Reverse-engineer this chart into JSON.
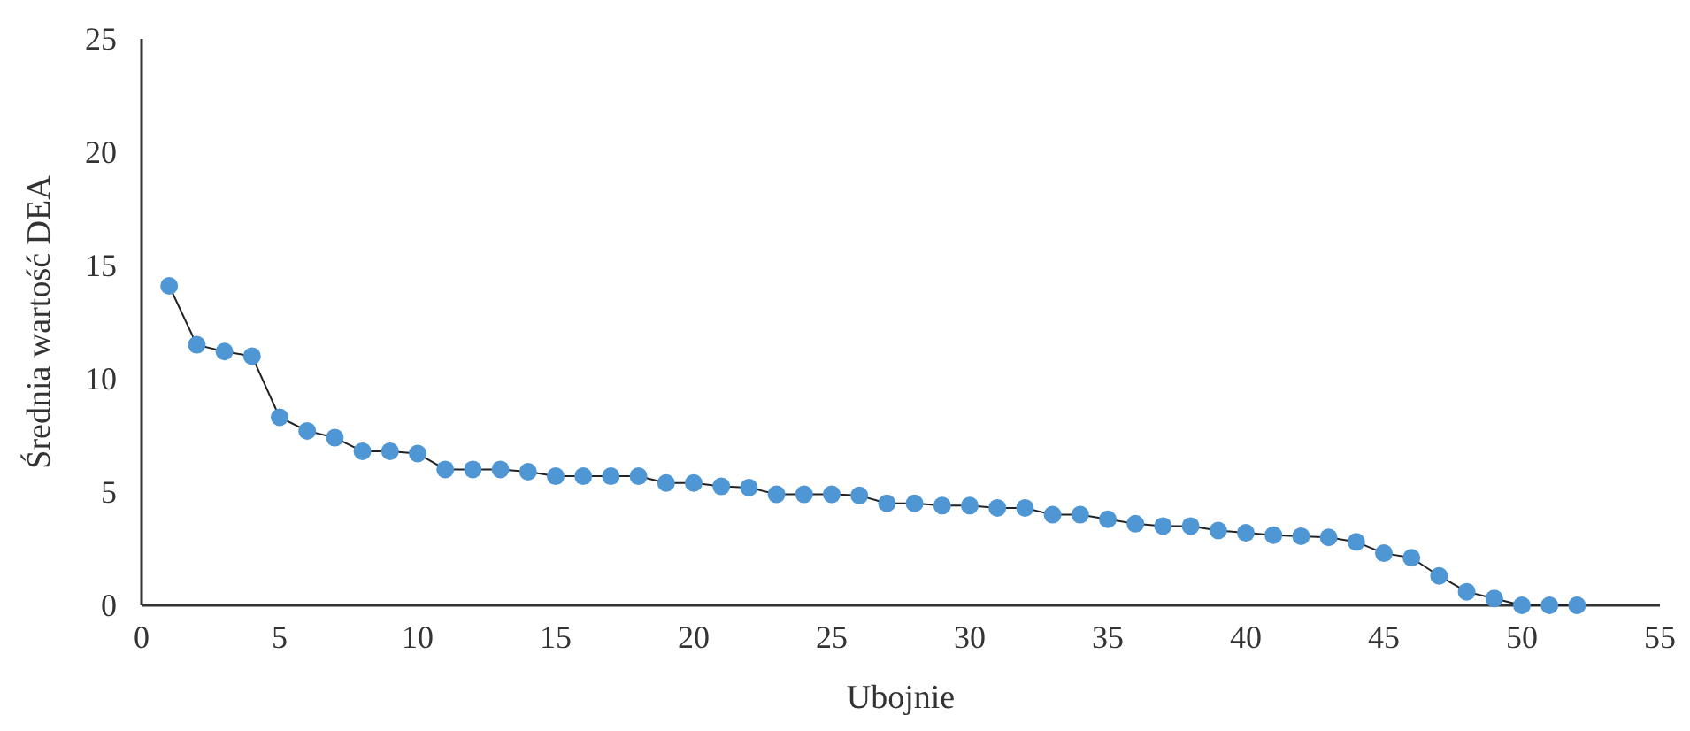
{
  "chart_data": {
    "type": "line",
    "xlabel": "Ubojnie",
    "ylabel": "Średnia wartość DEA",
    "x": [
      1,
      2,
      3,
      4,
      5,
      6,
      7,
      8,
      9,
      10,
      11,
      12,
      13,
      14,
      15,
      16,
      17,
      18,
      19,
      20,
      21,
      22,
      23,
      24,
      25,
      26,
      27,
      28,
      29,
      30,
      31,
      32,
      33,
      34,
      35,
      36,
      37,
      38,
      39,
      40,
      41,
      42,
      43,
      44,
      45,
      46,
      47,
      48,
      49,
      50,
      51,
      52
    ],
    "series": [
      {
        "color": "#4e96d4",
        "values": [
          14.1,
          11.5,
          11.2,
          11.0,
          8.3,
          7.7,
          7.4,
          6.8,
          6.8,
          6.7,
          6.0,
          6.0,
          6.0,
          5.9,
          5.7,
          5.7,
          5.7,
          5.7,
          5.4,
          5.4,
          5.25,
          5.2,
          4.9,
          4.9,
          4.9,
          4.85,
          4.5,
          4.5,
          4.4,
          4.4,
          4.3,
          4.3,
          4.0,
          4.0,
          3.8,
          3.6,
          3.5,
          3.5,
          3.3,
          3.2,
          3.1,
          3.05,
          3.0,
          2.8,
          2.3,
          2.1,
          1.3,
          0.6,
          0.3,
          0,
          0,
          0
        ]
      }
    ],
    "xlim": [
      0,
      55
    ],
    "xticks": [
      0,
      5,
      10,
      15,
      20,
      25,
      30,
      35,
      40,
      45,
      50,
      55
    ],
    "ylim": [
      0,
      25
    ],
    "yticks": [
      0,
      5,
      10,
      15,
      20,
      25
    ],
    "marker": "circle",
    "line_style": "solid",
    "grid": false
  }
}
